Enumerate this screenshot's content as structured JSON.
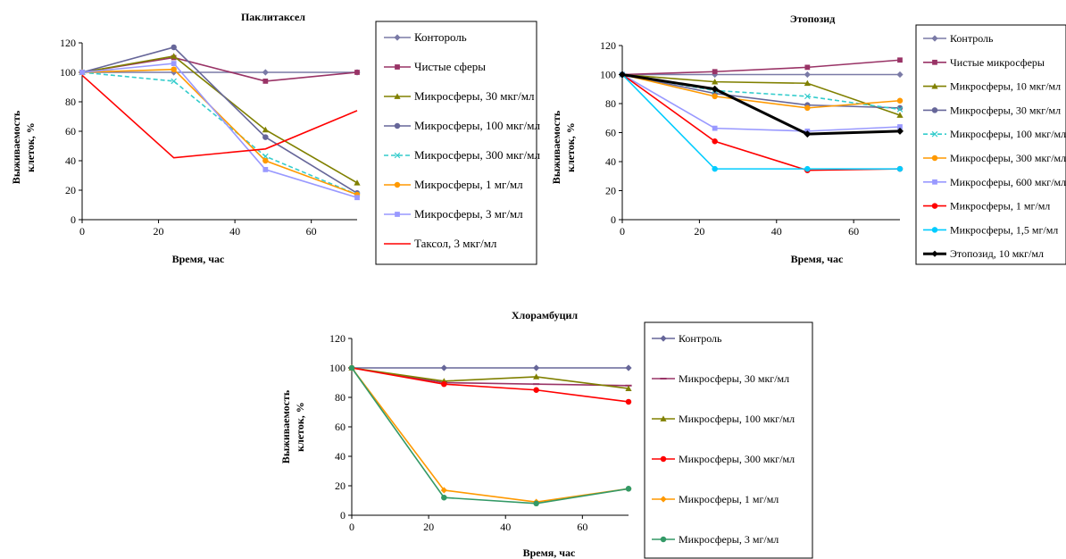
{
  "chart_data": [
    {
      "type": "line",
      "title": "Паклитаксел",
      "xlabel": "Время, час",
      "ylabel_lines": [
        "Выживаемость",
        "клеток, %"
      ],
      "xlim": [
        0,
        72
      ],
      "ylim": [
        0,
        120
      ],
      "xticks": [
        "0",
        "20",
        "40",
        "60"
      ],
      "yticks": [
        "0",
        "20",
        "40",
        "60",
        "80",
        "100",
        "120"
      ],
      "grid": false,
      "legend": "right",
      "series": [
        {
          "name": "Контороль",
          "color": "#7a7aa6",
          "marker": "diamond",
          "dash": false,
          "x": [
            0,
            24,
            48,
            72
          ],
          "y": [
            100,
            100,
            100,
            100
          ]
        },
        {
          "name": "Чистые сферы",
          "color": "#993366",
          "marker": "square",
          "dash": false,
          "x": [
            0,
            24,
            48,
            72
          ],
          "y": [
            100,
            110,
            94,
            100
          ]
        },
        {
          "name": "Микросферы, 30 мкг/мл",
          "color": "#808000",
          "marker": "triangle",
          "dash": false,
          "x": [
            0,
            24,
            48,
            72
          ],
          "y": [
            100,
            111,
            61,
            25
          ]
        },
        {
          "name": "Микросферы, 100 мкг/мл",
          "color": "#666699",
          "marker": "circle",
          "dash": false,
          "x": [
            0,
            24,
            48,
            72
          ],
          "y": [
            100,
            117,
            56,
            18
          ]
        },
        {
          "name": "Микросферы, 300 мкг/мл",
          "color": "#33cccc",
          "marker": "x",
          "dash": true,
          "x": [
            0,
            24,
            48,
            72
          ],
          "y": [
            100,
            94,
            43,
            17
          ]
        },
        {
          "name": "Микросферы, 1 мг/мл",
          "color": "#ff9900",
          "marker": "circle",
          "dash": false,
          "x": [
            0,
            24,
            48,
            72
          ],
          "y": [
            100,
            102,
            40,
            17
          ]
        },
        {
          "name": "Микросферы, 3 мг/мл",
          "color": "#9999ff",
          "marker": "square",
          "dash": false,
          "x": [
            0,
            24,
            48,
            72
          ],
          "y": [
            100,
            106,
            34,
            15
          ]
        },
        {
          "name": "Таксол, 3 мкг/мл",
          "color": "#ff0000",
          "marker": "none",
          "dash": false,
          "x": [
            0,
            24,
            48,
            72
          ],
          "y": [
            98,
            42,
            48,
            74
          ]
        }
      ]
    },
    {
      "type": "line",
      "title": "Этопозид",
      "xlabel": "Время, час",
      "ylabel_lines": [
        "Выживаемость",
        "клеток, %"
      ],
      "xlim": [
        0,
        72
      ],
      "ylim": [
        0,
        120
      ],
      "xticks": [
        "0",
        "20",
        "40",
        "60"
      ],
      "yticks": [
        "0",
        "20",
        "40",
        "60",
        "80",
        "100",
        "120"
      ],
      "grid": false,
      "legend": "right",
      "series": [
        {
          "name": "Контроль",
          "color": "#7a7aa6",
          "marker": "diamond",
          "dash": false,
          "x": [
            0,
            24,
            48,
            72
          ],
          "y": [
            100,
            100,
            100,
            100
          ]
        },
        {
          "name": "Чистые микросферы",
          "color": "#993366",
          "marker": "square",
          "dash": false,
          "x": [
            0,
            24,
            48,
            72
          ],
          "y": [
            100,
            102,
            105,
            110
          ]
        },
        {
          "name": "Микросферы, 10 мкг/мл",
          "color": "#808000",
          "marker": "triangle",
          "dash": false,
          "x": [
            0,
            24,
            48,
            72
          ],
          "y": [
            100,
            95,
            94,
            72
          ]
        },
        {
          "name": "Микросферы, 30 мкг/мл",
          "color": "#666699",
          "marker": "circle",
          "dash": false,
          "x": [
            0,
            24,
            48,
            72
          ],
          "y": [
            100,
            87,
            79,
            77
          ]
        },
        {
          "name": "Микросферы, 100 мкг/мл",
          "color": "#33cccc",
          "marker": "x",
          "dash": true,
          "x": [
            0,
            24,
            48,
            72
          ],
          "y": [
            100,
            89,
            85,
            76
          ]
        },
        {
          "name": "Микросферы, 300 мкг/мл",
          "color": "#ff9900",
          "marker": "circle",
          "dash": false,
          "x": [
            0,
            24,
            48,
            72
          ],
          "y": [
            100,
            85,
            77,
            82
          ]
        },
        {
          "name": "Микросферы, 600 мкг/мл",
          "color": "#9999ff",
          "marker": "square",
          "dash": false,
          "x": [
            0,
            24,
            48,
            72
          ],
          "y": [
            100,
            63,
            61,
            64
          ]
        },
        {
          "name": "Микросферы, 1 мг/мл",
          "color": "#ff0000",
          "marker": "circle",
          "dash": false,
          "x": [
            0,
            24,
            48,
            72
          ],
          "y": [
            100,
            54,
            34,
            35
          ]
        },
        {
          "name": "Микросферы, 1,5 мг/мл",
          "color": "#00ccff",
          "marker": "circle",
          "dash": false,
          "x": [
            0,
            24,
            48,
            72
          ],
          "y": [
            100,
            35,
            35,
            35
          ]
        },
        {
          "name": "Этопозид, 10 мкг/мл",
          "color": "#000000",
          "marker": "diamond",
          "dash": false,
          "bold": true,
          "x": [
            0,
            24,
            48,
            72
          ],
          "y": [
            100,
            90,
            59,
            61
          ]
        }
      ]
    },
    {
      "type": "line",
      "title": "Хлорамбуцил",
      "xlabel": "Время, час",
      "ylabel_lines": [
        "Выживаемость",
        "клеток, %"
      ],
      "xlim": [
        0,
        72
      ],
      "ylim": [
        0,
        120
      ],
      "xticks": [
        "0",
        "20",
        "40",
        "60"
      ],
      "yticks": [
        "0",
        "20",
        "40",
        "60",
        "80",
        "100",
        "120"
      ],
      "grid": false,
      "legend": "right",
      "series": [
        {
          "name": "Контроль",
          "color": "#666699",
          "marker": "diamond",
          "dash": false,
          "x": [
            0,
            24,
            48,
            72
          ],
          "y": [
            100,
            100,
            100,
            100
          ]
        },
        {
          "name": "Микросферы, 30 мкг/мл",
          "color": "#993366",
          "marker": "dash",
          "dash": false,
          "x": [
            0,
            24,
            48,
            72
          ],
          "y": [
            100,
            90,
            89,
            88
          ]
        },
        {
          "name": "Микросферы, 100 мкг/мл",
          "color": "#808000",
          "marker": "triangle",
          "dash": false,
          "x": [
            0,
            24,
            48,
            72
          ],
          "y": [
            100,
            91,
            94,
            86
          ]
        },
        {
          "name": "Микросферы, 300 мкг/мл",
          "color": "#ff0000",
          "marker": "circle",
          "dash": false,
          "x": [
            0,
            24,
            48,
            72
          ],
          "y": [
            100,
            89,
            85,
            77
          ]
        },
        {
          "name": "Микросферы, 1 мг/мл",
          "color": "#ff9900",
          "marker": "diamond",
          "dash": false,
          "x": [
            0,
            24,
            48,
            72
          ],
          "y": [
            100,
            17,
            9,
            18
          ]
        },
        {
          "name": "Микросферы, 3 мг/мл",
          "color": "#339966",
          "marker": "circle",
          "dash": false,
          "x": [
            0,
            24,
            48,
            72
          ],
          "y": [
            100,
            12,
            8,
            18
          ]
        }
      ]
    }
  ]
}
